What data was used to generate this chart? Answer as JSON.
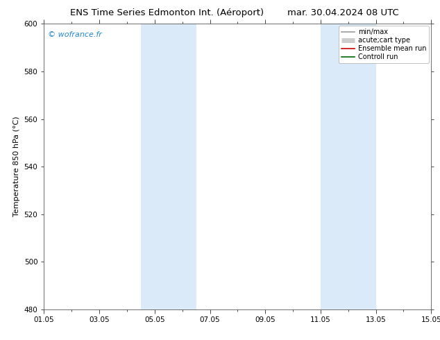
{
  "title_left": "ENS Time Series Edmonton Int. (Aéroport)",
  "title_right": "mar. 30.04.2024 08 UTC",
  "ylabel": "Temperature 850 hPa (°C)",
  "ymin": 480,
  "ymax": 600,
  "yticks": [
    480,
    500,
    520,
    540,
    560,
    580,
    600
  ],
  "xtick_labels": [
    "01.05",
    "03.05",
    "05.05",
    "07.05",
    "09.05",
    "11.05",
    "13.05",
    "15.05"
  ],
  "xtick_positions": [
    0,
    2,
    4,
    6,
    8,
    10,
    12,
    14
  ],
  "xmin": 0,
  "xmax": 14,
  "shaded_regions": [
    {
      "xstart": 3.5,
      "xend": 5.5,
      "color": "#daeaf8"
    },
    {
      "xstart": 10.0,
      "xend": 12.0,
      "color": "#daeaf8"
    }
  ],
  "watermark": "© wofrance.fr",
  "watermark_color": "#2288cc",
  "legend_items": [
    {
      "label": "min/max",
      "color": "#999999",
      "lw": 1.2
    },
    {
      "label": "acute;cart type",
      "color": "#cccccc",
      "lw": 5
    },
    {
      "label": "Ensemble mean run",
      "color": "#cc0000",
      "lw": 1.2
    },
    {
      "label": "Controll run",
      "color": "#006600",
      "lw": 1.2
    }
  ],
  "bg_color": "#ffffff",
  "plot_bg_color": "#ffffff",
  "title_fontsize": 9.5,
  "label_fontsize": 8,
  "tick_fontsize": 7.5,
  "legend_fontsize": 7
}
